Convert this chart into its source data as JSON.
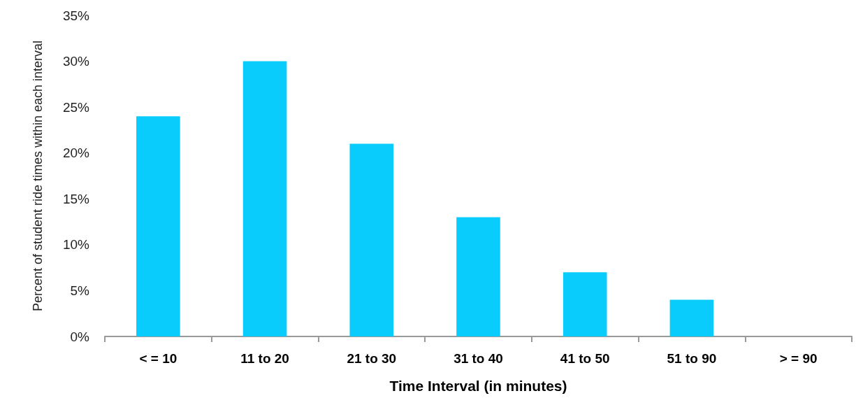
{
  "chart_data": {
    "type": "bar",
    "xlabel": "Time Interval (in minutes)",
    "ylabel": "Percent of student ride times within each interval",
    "categories": [
      "< = 10",
      "11 to 20",
      "21 to 30",
      "31 to 40",
      "41 to 50",
      "51 to 90",
      "> = 90"
    ],
    "values": [
      24,
      30,
      21,
      13,
      7,
      4,
      0
    ],
    "color": "#0accfc",
    "ylim": [
      0,
      35
    ],
    "yticks": [
      {
        "value": 0,
        "label": "0%"
      },
      {
        "value": 5,
        "label": "5%"
      },
      {
        "value": 10,
        "label": "10%"
      },
      {
        "value": 15,
        "label": "15%"
      },
      {
        "value": 20,
        "label": "20%"
      },
      {
        "value": 25,
        "label": "25%"
      },
      {
        "value": 30,
        "label": "30%"
      },
      {
        "value": 35,
        "label": "35%"
      }
    ],
    "grid": false
  }
}
